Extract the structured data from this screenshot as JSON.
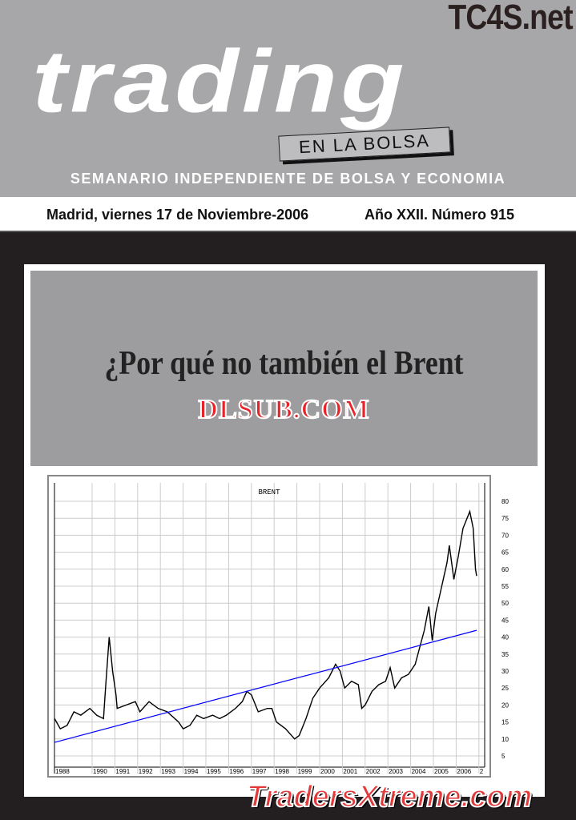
{
  "masthead": {
    "logo": "trading",
    "sublogo": "EN LA BOLSA",
    "watermark": "TC4S.net",
    "tagline": "SEMANARIO INDEPENDIENTE DE BOLSA Y ECONOMIA"
  },
  "issue": {
    "date": "Madrid, viernes 17 de Noviembre-2006",
    "number": "Año XXII. Número 915"
  },
  "headline": "¿Por qué no también el Brent",
  "overlay_watermark": "DLSUB.COM",
  "footer_watermark": "TradersXtreme.com",
  "colors": {
    "masthead_bg": "#a7a6a8",
    "headline_bg": "#9d9c9e",
    "price_line": "#000000",
    "trend_line": "#0000ff"
  },
  "chart_data": {
    "type": "line",
    "title": "BRENT",
    "grid": true,
    "xlabels": [
      "1988",
      "1990",
      "1991",
      "1992",
      "1993",
      "1994",
      "1995",
      "1996",
      "1997",
      "1998",
      "1999",
      "2000",
      "2001",
      "2002",
      "2003",
      "2004",
      "2005",
      "2006",
      "2"
    ],
    "yticks": [
      5,
      10,
      15,
      20,
      25,
      30,
      35,
      40,
      45,
      50,
      55,
      60,
      65,
      70,
      75,
      80
    ],
    "ylim": [
      2,
      83
    ],
    "series": [
      {
        "x": [
          1988.35,
          1988.6,
          1988.9,
          1989.2,
          1989.5,
          1989.9,
          1990.2,
          1990.5,
          1990.6,
          1990.75,
          1990.9,
          1991.05,
          1991.1,
          1991.5,
          1991.9,
          1992.1,
          1992.5,
          1992.9,
          1993.3,
          1993.8,
          1994.0,
          1994.3,
          1994.6,
          1994.9,
          1995.3,
          1995.6,
          1995.9,
          1996.3,
          1996.6,
          1996.8,
          1997.0,
          1997.3,
          1997.7,
          1997.9,
          1998.1,
          1998.5,
          1998.9,
          1999.1,
          1999.4,
          1999.7,
          2000.0,
          2000.4,
          2000.7,
          2000.9,
          2001.1,
          2001.4,
          2001.7,
          2001.85,
          2002.0,
          2002.3,
          2002.6,
          2002.9,
          2003.1,
          2003.3,
          2003.6,
          2003.9,
          2004.2,
          2004.4,
          2004.6,
          2004.8,
          2004.95,
          2005.1,
          2005.3,
          2005.6,
          2005.7,
          2005.9,
          2006.1,
          2006.3,
          2006.6,
          2006.75,
          2006.85,
          2006.9
        ],
        "y": [
          16,
          13,
          14,
          18,
          17,
          19,
          17,
          16,
          26,
          40,
          30,
          23,
          19,
          20,
          21,
          18,
          21,
          19,
          18,
          15,
          13,
          14,
          17,
          16,
          17,
          16,
          17,
          19,
          21,
          24,
          23,
          18,
          19,
          19,
          15,
          13,
          10,
          11,
          16,
          22,
          25,
          28,
          32,
          30,
          25,
          27,
          26,
          19,
          20,
          24,
          26,
          27,
          31,
          25,
          28,
          29,
          32,
          37,
          42,
          49,
          39,
          47,
          53,
          62,
          67,
          57,
          64,
          72,
          77,
          72,
          60,
          58
        ]
      },
      {
        "name": "",
        "x": [
          1988.35,
          2006.9
        ],
        "y": [
          9,
          42
        ]
      }
    ]
  }
}
